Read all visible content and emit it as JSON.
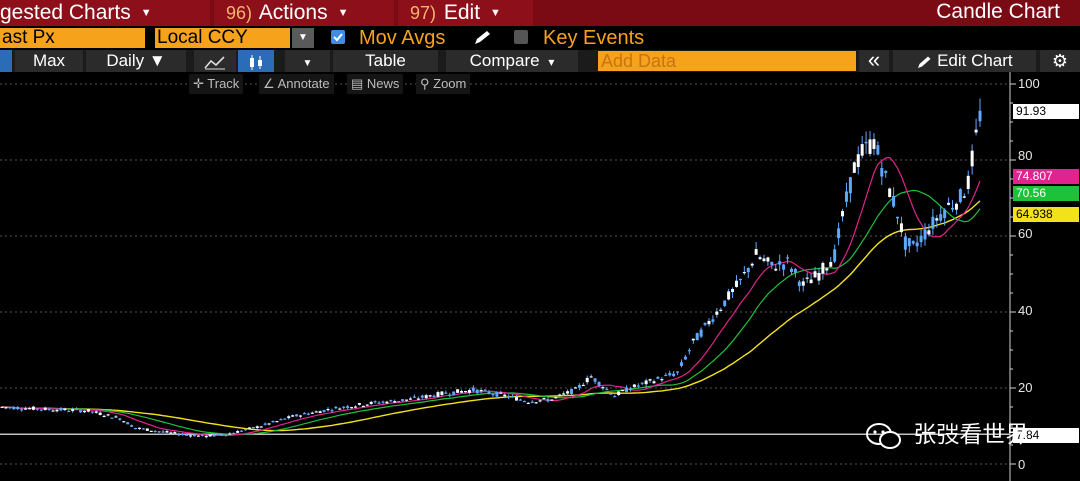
{
  "menu": {
    "suggested_charts": "gested Charts",
    "actions_num": "96)",
    "actions": "Actions",
    "edit_num": "97)",
    "edit": "Edit",
    "window_title": "Candle Chart"
  },
  "options": {
    "price_field": "ast Px",
    "currency": "Local CCY",
    "mov_avgs_label": "Mov Avgs",
    "key_events_label": "Key Events"
  },
  "toolbar": {
    "max": "Max",
    "daily": "Daily ▼",
    "table": "Table",
    "compare": "Compare",
    "compare_caret": "▾",
    "add_data_placeholder": "Add Data",
    "collapse": "«",
    "edit_chart": "Edit Chart"
  },
  "chart_tools": {
    "track": "Track",
    "annotate": "Annotate",
    "news": "News",
    "zoom": "Zoom"
  },
  "chart_data": {
    "type": "candlestick",
    "y_ticks": [
      "100",
      "80",
      "60",
      "40",
      "20",
      "0"
    ],
    "ylim": [
      0,
      100
    ],
    "last_price": "91.93",
    "ma_values": [
      {
        "value": "74.807",
        "color": "#e0238e"
      },
      {
        "value": "70.56",
        "color": "#1ec23a"
      },
      {
        "value": "64.938",
        "color": "#f2e21c"
      }
    ],
    "reference_label": "7.84",
    "reference_value": 7.84,
    "colors": {
      "price": "#5fa8ff",
      "ma_short": "#e0238e",
      "ma_mid": "#1ec23a",
      "ma_long": "#f2e21c"
    }
  },
  "watermark": {
    "text": "张弢看世界"
  }
}
